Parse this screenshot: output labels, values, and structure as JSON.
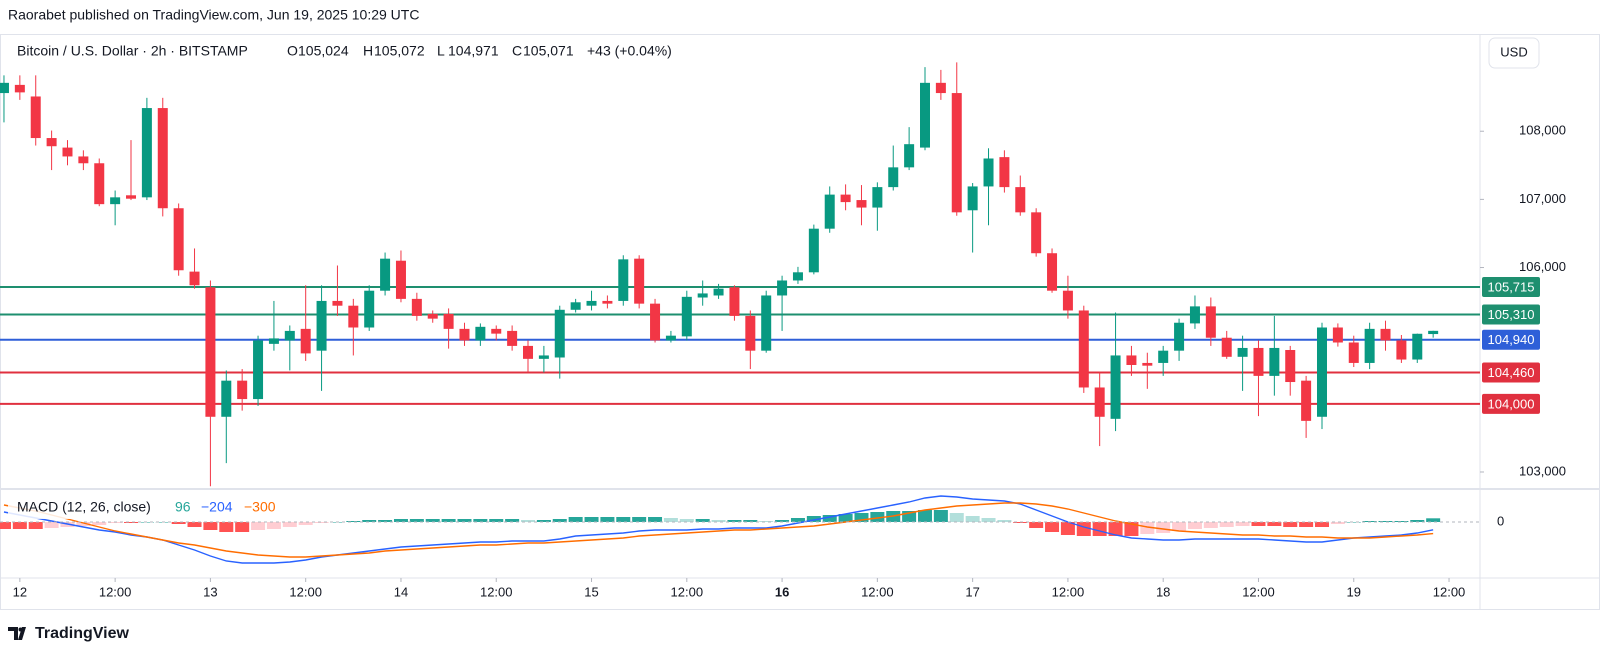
{
  "header": {
    "text": "Raorabet published on TradingView.com, Jun 19, 2025 10:29 UTC"
  },
  "footer": {
    "brand": "TradingView"
  },
  "chart_data": [
    {
      "type": "candlestick",
      "title": "Bitcoin / U.S. Dollar · 2h · BITSTAMP",
      "legend": [
        {
          "label": "O",
          "value": "105,024"
        },
        {
          "label": "H",
          "value": "105,072"
        },
        {
          "label": "L",
          "value": "104,971"
        },
        {
          "label": "C",
          "value": "105,071"
        }
      ],
      "change": "+43 (+0.04%)",
      "currency": "USD",
      "up_color": "#089981",
      "down_color": "#f23645",
      "x": [
        -2,
        0,
        2,
        4,
        6,
        8,
        10,
        12,
        14,
        16,
        18,
        20,
        22,
        24,
        26,
        28,
        30,
        32,
        34,
        36,
        38,
        40,
        42,
        44,
        46,
        48,
        50,
        52,
        54,
        56,
        58,
        60,
        62,
        64,
        66,
        68,
        70,
        72,
        74,
        76,
        78,
        80,
        82,
        84,
        86,
        88,
        90,
        92,
        94,
        96,
        98,
        100,
        102,
        104,
        106,
        108,
        110,
        112,
        114,
        116,
        118,
        120,
        122,
        124,
        126,
        128,
        130,
        132,
        134,
        136,
        138,
        140,
        142,
        144,
        146,
        148,
        150,
        152,
        154,
        156,
        158,
        160,
        162,
        164,
        166,
        168,
        170,
        172,
        174,
        176,
        178
      ],
      "open": [
        108560,
        108680,
        108510,
        107900,
        107760,
        107630,
        107530,
        106930,
        107060,
        107030,
        108340,
        106870,
        105940,
        105710,
        103810,
        104340,
        104070,
        104880,
        104930,
        105100,
        104780,
        105510,
        105440,
        105120,
        105660,
        106100,
        105540,
        105320,
        105320,
        105100,
        104930,
        105100,
        105070,
        104850,
        104660,
        104680,
        105380,
        105440,
        105510,
        105510,
        106130,
        105470,
        104930,
        104990,
        105560,
        105590,
        105710,
        105290,
        104780,
        105590,
        105810,
        105930,
        106570,
        107070,
        106990,
        106880,
        107180,
        107470,
        107760,
        108710,
        108560,
        106840,
        107190,
        107620,
        107180,
        106810,
        106210,
        105660,
        105370,
        104240,
        103780,
        104710,
        104600,
        104600,
        104780,
        105180,
        105430,
        104970,
        104690,
        104820,
        104410,
        104790,
        104340,
        103810,
        105120,
        104900,
        104600,
        105100,
        104930,
        104650,
        105024
      ],
      "high": [
        108820,
        108820,
        108820,
        108010,
        107870,
        107720,
        107600,
        107130,
        107870,
        108490,
        108490,
        106940,
        106280,
        105810,
        104490,
        104510,
        105000,
        105510,
        105150,
        105740,
        105740,
        106030,
        105540,
        105740,
        106220,
        106250,
        105630,
        105370,
        105400,
        105190,
        105180,
        105150,
        105150,
        104930,
        104850,
        105440,
        105540,
        105660,
        105590,
        106180,
        106180,
        105540,
        105070,
        105660,
        105810,
        105760,
        105740,
        105370,
        105660,
        105880,
        106010,
        106630,
        107190,
        107220,
        107210,
        107250,
        107790,
        108060,
        108940,
        108900,
        109010,
        107240,
        107750,
        107720,
        107350,
        106870,
        106280,
        105880,
        105440,
        104460,
        105340,
        104850,
        104750,
        104850,
        105250,
        105590,
        105560,
        105070,
        105000,
        104930,
        105290,
        104850,
        104410,
        105190,
        105180,
        105000,
        105190,
        105220,
        105010,
        105030,
        105072
      ],
      "low": [
        108130,
        108460,
        107790,
        107430,
        107500,
        107430,
        106900,
        106620,
        106990,
        106990,
        106750,
        105880,
        105690,
        102790,
        103130,
        103900,
        103970,
        104780,
        104490,
        104630,
        104190,
        105290,
        104710,
        105070,
        105590,
        105490,
        105220,
        105190,
        104810,
        104850,
        104850,
        104930,
        104780,
        104460,
        104460,
        104370,
        105340,
        105370,
        105400,
        105440,
        105400,
        104900,
        104900,
        104930,
        105440,
        105540,
        105220,
        104510,
        104750,
        105070,
        105760,
        105900,
        106510,
        106840,
        106620,
        106540,
        107130,
        107430,
        107720,
        108460,
        106760,
        106220,
        106620,
        107100,
        106760,
        106160,
        105630,
        105250,
        104160,
        103380,
        103600,
        104410,
        104220,
        104410,
        104630,
        105100,
        104850,
        104660,
        104190,
        103820,
        104120,
        104120,
        103500,
        103630,
        104840,
        104540,
        104510,
        104780,
        104600,
        104600,
        104971
      ],
      "close": [
        108710,
        108570,
        107900,
        107780,
        107630,
        107530,
        106930,
        107030,
        107010,
        108340,
        106870,
        105960,
        105740,
        103810,
        104340,
        104070,
        104930,
        104960,
        105070,
        104740,
        105510,
        105440,
        105120,
        105660,
        106130,
        105540,
        105290,
        105250,
        105100,
        104930,
        105130,
        105030,
        104850,
        104660,
        104710,
        105380,
        105490,
        105510,
        105470,
        106120,
        105470,
        104930,
        105000,
        105570,
        105620,
        105690,
        105290,
        104780,
        105590,
        105810,
        105930,
        106570,
        107070,
        106960,
        106880,
        107180,
        107470,
        107810,
        108710,
        108560,
        106810,
        107190,
        107600,
        107180,
        106810,
        106210,
        105660,
        105370,
        104240,
        103810,
        104710,
        104570,
        104560,
        104780,
        105190,
        105430,
        104970,
        104690,
        104820,
        104410,
        104820,
        104320,
        103750,
        105120,
        104900,
        104600,
        105100,
        104930,
        104650,
        105028,
        105071
      ],
      "xlim": [
        -2.5,
        183.9
      ],
      "xticks": [
        {
          "value": 0,
          "label": "12"
        },
        {
          "value": 12,
          "label": "12:00"
        },
        {
          "value": 24,
          "label": "13"
        },
        {
          "value": 36,
          "label": "12:00"
        },
        {
          "value": 48,
          "label": "14"
        },
        {
          "value": 60,
          "label": "12:00"
        },
        {
          "value": 72,
          "label": "15"
        },
        {
          "value": 84,
          "label": "12:00"
        },
        {
          "value": 96,
          "label": "16",
          "bold": true
        },
        {
          "value": 108,
          "label": "12:00"
        },
        {
          "value": 120,
          "label": "17"
        },
        {
          "value": 132,
          "label": "12:00"
        },
        {
          "value": 144,
          "label": "18"
        },
        {
          "value": 156,
          "label": "12:00"
        },
        {
          "value": 168,
          "label": "19"
        },
        {
          "value": 180,
          "label": "12:00"
        }
      ],
      "ylim": [
        102765,
        109412
      ],
      "yticks": [
        {
          "value": 108000,
          "label": "108,000"
        },
        {
          "value": 107000,
          "label": "107,000"
        },
        {
          "value": 106000,
          "label": "106,000"
        },
        {
          "value": 103000,
          "label": "103,000"
        }
      ],
      "levels": [
        {
          "value": 105715,
          "label": "105,715",
          "color": "#1e8f6f"
        },
        {
          "value": 105310,
          "label": "105,310",
          "color": "#1e8f6f"
        },
        {
          "value": 104940,
          "label": "104,940",
          "color": "#2e5fd8"
        },
        {
          "value": 104460,
          "label": "104,460",
          "color": "#e0303f"
        },
        {
          "value": 104000,
          "label": "104,000",
          "color": "#e0303f"
        }
      ]
    },
    {
      "type": "macd",
      "title": "MACD (12, 26, close)",
      "ylim": [
        -1456,
        832
      ],
      "yticks": [
        0
      ],
      "histogram_colors": {
        "up_rising": "#26a69a",
        "up_falling": "#b2dfdb",
        "down_falling": "#ff5252",
        "down_rising": "#ffcdd2"
      },
      "series": [
        {
          "kind": "histogram",
          "color": "#26a69a",
          "value_label": "96",
          "values": [
            -182,
            -182,
            -182,
            -156,
            -130,
            -104,
            -78,
            -26,
            -26,
            0,
            0,
            -52,
            -130,
            -208,
            -260,
            -260,
            -208,
            -182,
            -130,
            -78,
            -26,
            0,
            26,
            52,
            52,
            78,
            78,
            78,
            78,
            78,
            78,
            78,
            78,
            52,
            52,
            78,
            130,
            130,
            130,
            130,
            130,
            130,
            104,
            78,
            78,
            52,
            52,
            52,
            26,
            52,
            104,
            156,
            182,
            208,
            234,
            260,
            286,
            286,
            312,
            312,
            234,
            156,
            104,
            52,
            -26,
            -156,
            -260,
            -338,
            -364,
            -364,
            -364,
            -364,
            -312,
            -286,
            -234,
            -182,
            -156,
            -130,
            -104,
            -104,
            -104,
            -130,
            -130,
            -130,
            -52,
            0,
            26,
            26,
            26,
            52,
            96
          ]
        },
        {
          "kind": "line",
          "color": "#2962ff",
          "value_label": "−204",
          "values": [
            260,
            182,
            104,
            26,
            -52,
            -130,
            -208,
            -260,
            -338,
            -390,
            -468,
            -598,
            -728,
            -884,
            -1014,
            -1066,
            -1066,
            -1066,
            -1040,
            -988,
            -910,
            -858,
            -806,
            -754,
            -702,
            -650,
            -624,
            -598,
            -572,
            -546,
            -520,
            -520,
            -494,
            -494,
            -494,
            -442,
            -364,
            -338,
            -312,
            -286,
            -234,
            -208,
            -208,
            -208,
            -182,
            -182,
            -156,
            -156,
            -156,
            -104,
            -26,
            52,
            130,
            208,
            286,
            364,
            442,
            520,
            624,
            676,
            650,
            598,
            572,
            546,
            468,
            312,
            156,
            0,
            -130,
            -234,
            -338,
            -416,
            -442,
            -468,
            -468,
            -442,
            -442,
            -442,
            -442,
            -442,
            -468,
            -494,
            -520,
            -520,
            -468,
            -416,
            -390,
            -364,
            -338,
            -286,
            -204
          ]
        },
        {
          "kind": "line",
          "color": "#ff6d00",
          "value_label": "−300",
          "values": [
            442,
            364,
            286,
            182,
            78,
            -26,
            -130,
            -234,
            -312,
            -390,
            -468,
            -546,
            -598,
            -676,
            -754,
            -806,
            -858,
            -884,
            -910,
            -910,
            -884,
            -858,
            -832,
            -806,
            -754,
            -728,
            -702,
            -676,
            -650,
            -624,
            -598,
            -598,
            -572,
            -546,
            -546,
            -520,
            -494,
            -468,
            -442,
            -416,
            -364,
            -338,
            -312,
            -286,
            -260,
            -234,
            -208,
            -208,
            -182,
            -156,
            -130,
            -104,
            -52,
            0,
            52,
            104,
            156,
            234,
            312,
            364,
            416,
            442,
            468,
            494,
            494,
            468,
            416,
            338,
            234,
            130,
            26,
            -52,
            -130,
            -182,
            -234,
            -260,
            -286,
            -312,
            -338,
            -338,
            -364,
            -364,
            -390,
            -390,
            -416,
            -416,
            -416,
            -390,
            -364,
            -338,
            -300
          ]
        }
      ]
    }
  ]
}
